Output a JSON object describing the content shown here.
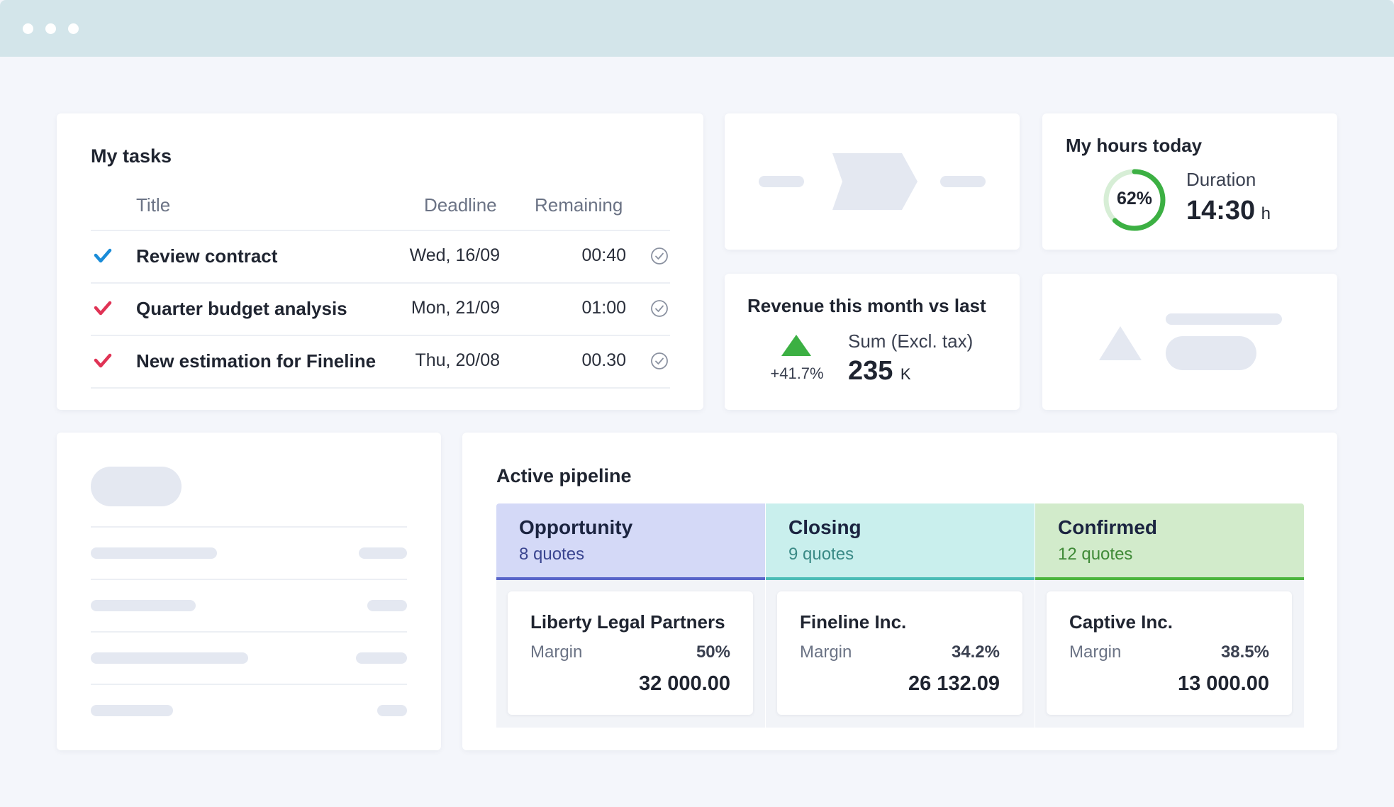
{
  "tasks": {
    "title": "My tasks",
    "headers": {
      "title": "Title",
      "deadline": "Deadline",
      "remaining": "Remaining"
    },
    "rows": [
      {
        "title": "Review contract",
        "deadline": "Wed, 16/09",
        "remaining": "00:40",
        "check_color": "#1a8cd8"
      },
      {
        "title": "Quarter budget analysis",
        "deadline": "Mon, 21/09",
        "remaining": "01:00",
        "check_color": "#e03355"
      },
      {
        "title": "New estimation for Fineline",
        "deadline": "Thu, 20/08",
        "remaining": "00.30",
        "check_color": "#e03355"
      }
    ]
  },
  "hours": {
    "title": "My hours today",
    "percent_label": "62%",
    "progress": 0.62,
    "duration_label": "Duration",
    "duration_value": "14:30",
    "duration_unit": "h",
    "ring_color": "#3cb043",
    "ring_track": "#d7eed6"
  },
  "revenue": {
    "title": "Revenue this month vs last",
    "change": "+41.7%",
    "sum_label": "Sum (Excl. tax)",
    "sum_value": "235",
    "sum_unit": "K",
    "trend_color": "#3cb043"
  },
  "pipeline": {
    "title": "Active pipeline",
    "columns": [
      {
        "name": "Opportunity",
        "count": "8 quotes",
        "bg": "#d4d9f7",
        "accent": "#5865c9",
        "count_color": "#3a4590",
        "deal": {
          "name": "Liberty Legal Partners",
          "margin_label": "Margin",
          "margin": "50%",
          "amount": "32 000.00"
        }
      },
      {
        "name": "Closing",
        "count": "9 quotes",
        "bg": "#c9efed",
        "accent": "#4bbcb6",
        "count_color": "#3a8a86",
        "deal": {
          "name": "Fineline Inc.",
          "margin_label": "Margin",
          "margin": "34.2%",
          "amount": "26 132.09"
        }
      },
      {
        "name": "Confirmed",
        "count": "12 quotes",
        "bg": "#d2ebcb",
        "accent": "#4cb53e",
        "count_color": "#3f8a37",
        "deal": {
          "name": "Captive Inc.",
          "margin_label": "Margin",
          "margin": "38.5%",
          "amount": "13 000.00"
        }
      }
    ]
  }
}
